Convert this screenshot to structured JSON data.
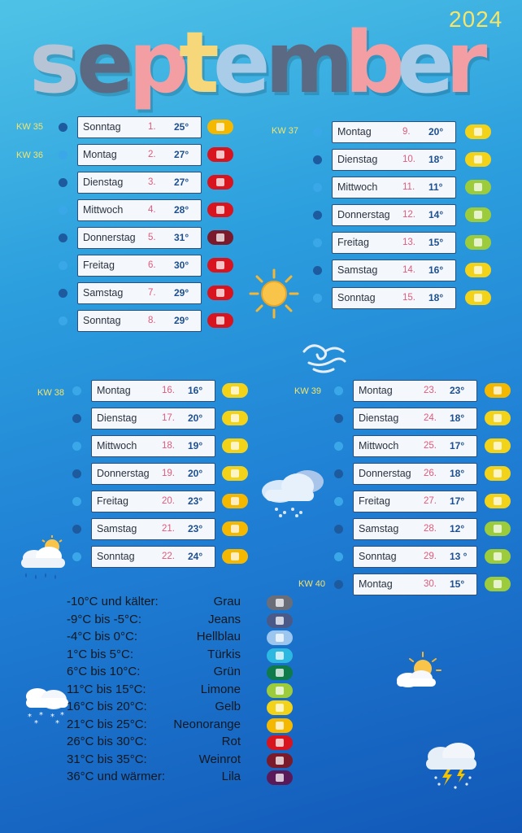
{
  "year": "2024",
  "month_title": "september",
  "title_letters": [
    {
      "ch": "s",
      "color": "#b7c4d6"
    },
    {
      "ch": "e",
      "color": "#5b6a82"
    },
    {
      "ch": "p",
      "color": "#f29ea3"
    },
    {
      "ch": "t",
      "color": "#f6d77a"
    },
    {
      "ch": "e",
      "color": "#a9cde8"
    },
    {
      "ch": "m",
      "color": "#5b6a82"
    },
    {
      "ch": "b",
      "color": "#f29ea3"
    },
    {
      "ch": "e",
      "color": "#a9cde8"
    },
    {
      "ch": "r",
      "color": "#f29ea3"
    }
  ],
  "weeks": {
    "kw35": "KW 35",
    "kw36": "KW 36",
    "kw37": "KW 37",
    "kw38": "KW 38",
    "kw39": "KW 39",
    "kw40": "KW 40"
  },
  "days": [
    {
      "day": "Sonntag",
      "num": "1.",
      "temp": "25°",
      "yarn": "#f5b800"
    },
    {
      "day": "Montag",
      "num": "2.",
      "temp": "27°",
      "yarn": "#d8141e"
    },
    {
      "day": "Dienstag",
      "num": "3.",
      "temp": "27°",
      "yarn": "#d8141e"
    },
    {
      "day": "Mittwoch",
      "num": "4.",
      "temp": "28°",
      "yarn": "#d8141e"
    },
    {
      "day": "Donnerstag",
      "num": "5.",
      "temp": "31°",
      "yarn": "#7a1a2a"
    },
    {
      "day": "Freitag",
      "num": "6.",
      "temp": "30°",
      "yarn": "#d8141e"
    },
    {
      "day": "Samstag",
      "num": "7.",
      "temp": "29°",
      "yarn": "#d8141e"
    },
    {
      "day": "Sonntag",
      "num": "8.",
      "temp": "29°",
      "yarn": "#d8141e"
    },
    {
      "day": "Montag",
      "num": "9.",
      "temp": "20°",
      "yarn": "#f2d31a"
    },
    {
      "day": "Dienstag",
      "num": "10.",
      "temp": "18°",
      "yarn": "#f2d31a"
    },
    {
      "day": "Mittwoch",
      "num": "11.",
      "temp": "11°",
      "yarn": "#9ccc3c"
    },
    {
      "day": "Donnerstag",
      "num": "12.",
      "temp": "14°",
      "yarn": "#9ccc3c"
    },
    {
      "day": "Freitag",
      "num": "13.",
      "temp": "15°",
      "yarn": "#9ccc3c"
    },
    {
      "day": "Samstag",
      "num": "14.",
      "temp": "16°",
      "yarn": "#f2d31a"
    },
    {
      "day": "Sonntag",
      "num": "15.",
      "temp": "18°",
      "yarn": "#f2d31a"
    },
    {
      "day": "Montag",
      "num": "16.",
      "temp": "16°",
      "yarn": "#f2d31a"
    },
    {
      "day": "Dienstag",
      "num": "17.",
      "temp": "20°",
      "yarn": "#f2d31a"
    },
    {
      "day": "Mittwoch",
      "num": "18.",
      "temp": "19°",
      "yarn": "#f2d31a"
    },
    {
      "day": "Donnerstag",
      "num": "19.",
      "temp": "20°",
      "yarn": "#f2d31a"
    },
    {
      "day": "Freitag",
      "num": "20.",
      "temp": "23°",
      "yarn": "#f5b800"
    },
    {
      "day": "Samstag",
      "num": "21.",
      "temp": "23°",
      "yarn": "#f5b800"
    },
    {
      "day": "Sonntag",
      "num": "22.",
      "temp": "24°",
      "yarn": "#f5b800"
    },
    {
      "day": "Montag",
      "num": "23.",
      "temp": "23°",
      "yarn": "#f5b800"
    },
    {
      "day": "Dienstag",
      "num": "24.",
      "temp": "18°",
      "yarn": "#f2d31a"
    },
    {
      "day": "Mittwoch",
      "num": "25.",
      "temp": "17°",
      "yarn": "#f2d31a"
    },
    {
      "day": "Donnerstag",
      "num": "26.",
      "temp": "18°",
      "yarn": "#f2d31a"
    },
    {
      "day": "Freitag",
      "num": "27.",
      "temp": "17°",
      "yarn": "#f2d31a"
    },
    {
      "day": "Samstag",
      "num": "28.",
      "temp": "12°",
      "yarn": "#9ccc3c"
    },
    {
      "day": "Sonntag",
      "num": "29.",
      "temp": "13 °",
      "yarn": "#9ccc3c"
    },
    {
      "day": "Montag",
      "num": "30.",
      "temp": "15°",
      "yarn": "#9ccc3c"
    }
  ],
  "legend": [
    {
      "range": "-10°C und kälter:",
      "color_name": "Grau",
      "swatch": "#6a6e78"
    },
    {
      "range": "-9°C bis -5°C:",
      "color_name": "Jeans",
      "swatch": "#4a5a88"
    },
    {
      "range": "-4°C bis 0°C:",
      "color_name": "Hellblau",
      "swatch": "#9cc6ee"
    },
    {
      "range": "1°C bis 5°C:",
      "color_name": "Türkis",
      "swatch": "#2cb8e0"
    },
    {
      "range": "6°C bis 10°C:",
      "color_name": "Grün",
      "swatch": "#0f7a4a"
    },
    {
      "range": "11°C bis 15°C:",
      "color_name": "Limone",
      "swatch": "#9ccc3c"
    },
    {
      "range": "16°C bis 20°C:",
      "color_name": "Gelb",
      "swatch": "#f2d31a"
    },
    {
      "range": "21°C bis 25°C:",
      "color_name": "Neonorange",
      "swatch": "#f5b800"
    },
    {
      "range": "26°C bis 30°C:",
      "color_name": "Rot",
      "swatch": "#d8141e"
    },
    {
      "range": "31°C bis 35°C:",
      "color_name": "Weinrot",
      "swatch": "#7a1a2a"
    },
    {
      "range": "36°C und wärmer:",
      "color_name": "Lila",
      "swatch": "#5a1a5a"
    }
  ],
  "icons": {
    "sun": "sun-icon",
    "wind": "wind-icon",
    "rain_cloud": "rain-cloud-icon",
    "sun_rain_cloud": "sun-rain-cloud-icon",
    "snow_cloud": "snow-cloud-icon",
    "sun_cloud": "sun-cloud-icon",
    "storm_cloud": "storm-cloud-icon"
  }
}
